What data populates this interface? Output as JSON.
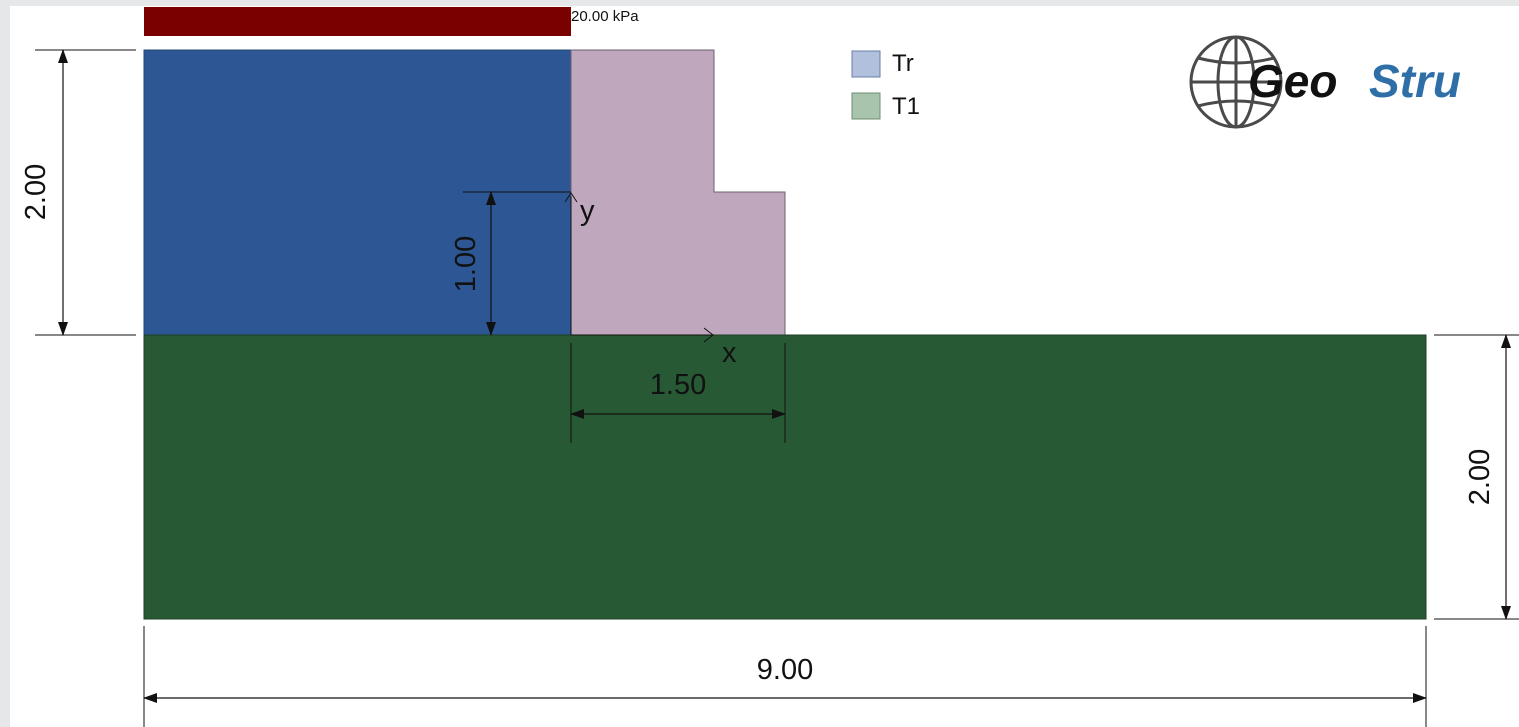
{
  "load": {
    "label": "20.00 kPa",
    "color": "#7a0000"
  },
  "legend": [
    {
      "name": "Tr",
      "color": "#b1c1dd",
      "border": "#6b7fa5"
    },
    {
      "name": "T1",
      "color": "#a9c4ad",
      "border": "#6d8d72"
    }
  ],
  "logo": {
    "text_a": "Geo",
    "text_b": "Stru",
    "color_a": "#111111",
    "color_b": "#2e6fa7"
  },
  "materials": {
    "backfill_color": "#2c5794",
    "wall_color": "#bfa8bd",
    "foundation_color": "#275a34"
  },
  "axes": {
    "x_label": "x",
    "y_label": "y"
  },
  "dimensions": {
    "left_height": "2.00",
    "step_height": "1.00",
    "base_width": "1.50",
    "right_height": "2.00",
    "total_width": "9.00"
  }
}
